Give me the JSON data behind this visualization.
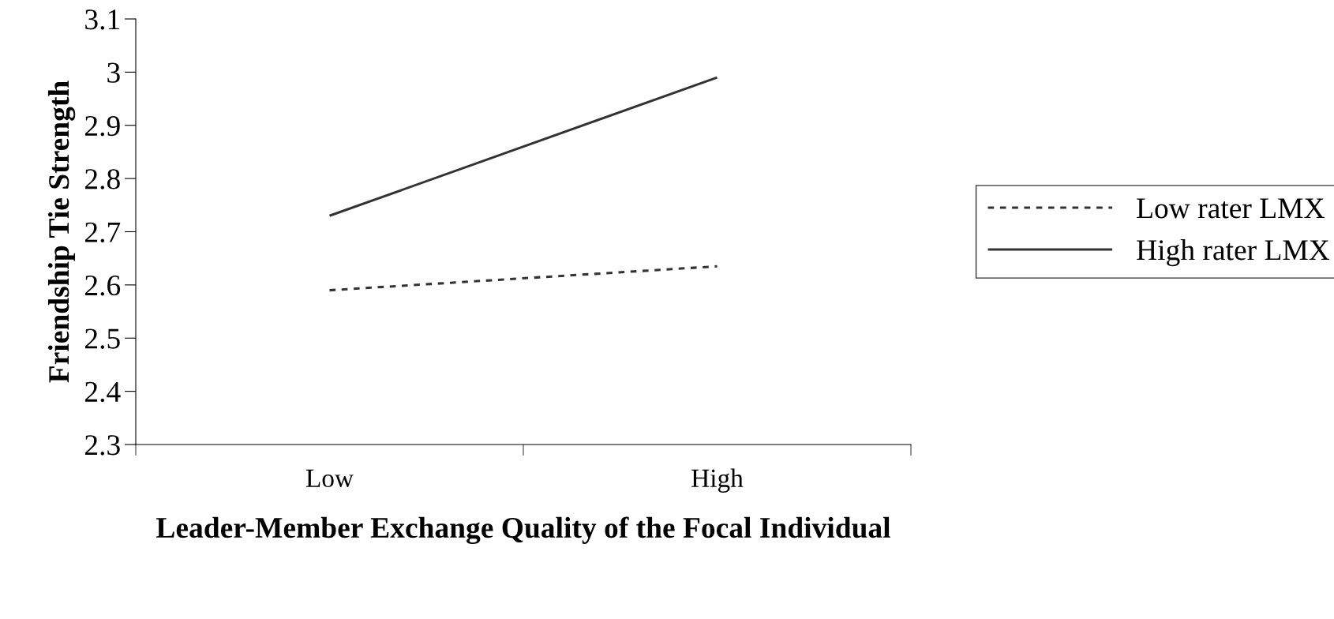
{
  "chart_data": {
    "type": "line",
    "xlabel": "Leader-Member Exchange Quality of the Focal Individual",
    "ylabel": "Friendship Tie Strength",
    "categories": [
      "Low",
      "High"
    ],
    "series": [
      {
        "name": "Low rater LMX",
        "color": "#333333",
        "values": [
          2.59,
          2.635
        ],
        "line_style": "dotted"
      },
      {
        "name": "High rater LMX",
        "color": "#333333",
        "values": [
          2.73,
          2.99
        ],
        "line_style": "solid"
      }
    ],
    "ylim": [
      2.3,
      3.1
    ],
    "yticks": [
      2.3,
      2.4,
      2.5,
      2.6,
      2.7,
      2.8,
      2.9,
      3,
      3.1
    ],
    "grid": false,
    "legend": "right",
    "marker": "none"
  }
}
